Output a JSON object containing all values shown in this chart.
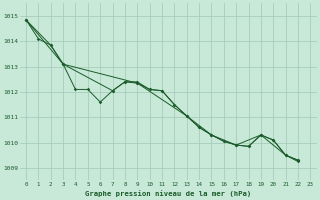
{
  "background_color": "#c8e8d8",
  "grid_color": "#a0c8b8",
  "line_color": "#1a5c2a",
  "text_color": "#1a5c2a",
  "xlabel": "Graphe pression niveau de la mer (hPa)",
  "xlim": [
    -0.5,
    23.5
  ],
  "ylim": [
    1008.5,
    1015.5
  ],
  "yticks": [
    1009,
    1010,
    1011,
    1012,
    1013,
    1014,
    1015
  ],
  "xticks": [
    0,
    1,
    2,
    3,
    4,
    5,
    6,
    7,
    8,
    9,
    10,
    11,
    12,
    13,
    14,
    15,
    16,
    17,
    18,
    19,
    20,
    21,
    22,
    23
  ],
  "line1_x": [
    0,
    1,
    2,
    3,
    4,
    5,
    6,
    7,
    8,
    9,
    10,
    11,
    12,
    13,
    14,
    15,
    16,
    17,
    18,
    19,
    20,
    21,
    22
  ],
  "line1_y": [
    1014.85,
    1014.1,
    1013.85,
    1013.1,
    1012.1,
    1012.1,
    1011.6,
    1012.05,
    1012.4,
    1012.4,
    1012.1,
    1012.05,
    1011.5,
    1011.05,
    1010.6,
    1010.3,
    1010.05,
    1009.9,
    1009.85,
    1010.3,
    1010.1,
    1009.5,
    1009.3
  ],
  "line2_x": [
    0,
    2,
    3,
    7,
    8,
    9,
    10,
    11,
    12,
    13,
    14,
    15,
    16,
    17,
    18,
    19,
    20,
    21,
    22
  ],
  "line2_y": [
    1014.85,
    1013.85,
    1013.1,
    1012.05,
    1012.4,
    1012.35,
    1012.1,
    1012.05,
    1011.5,
    1011.05,
    1010.6,
    1010.3,
    1010.05,
    1009.9,
    1009.85,
    1010.3,
    1010.1,
    1009.5,
    1009.3
  ],
  "line3_x": [
    0,
    3,
    9,
    13,
    15,
    17,
    19,
    21,
    22
  ],
  "line3_y": [
    1014.85,
    1013.1,
    1012.35,
    1011.05,
    1010.3,
    1009.9,
    1010.3,
    1009.5,
    1009.25
  ]
}
